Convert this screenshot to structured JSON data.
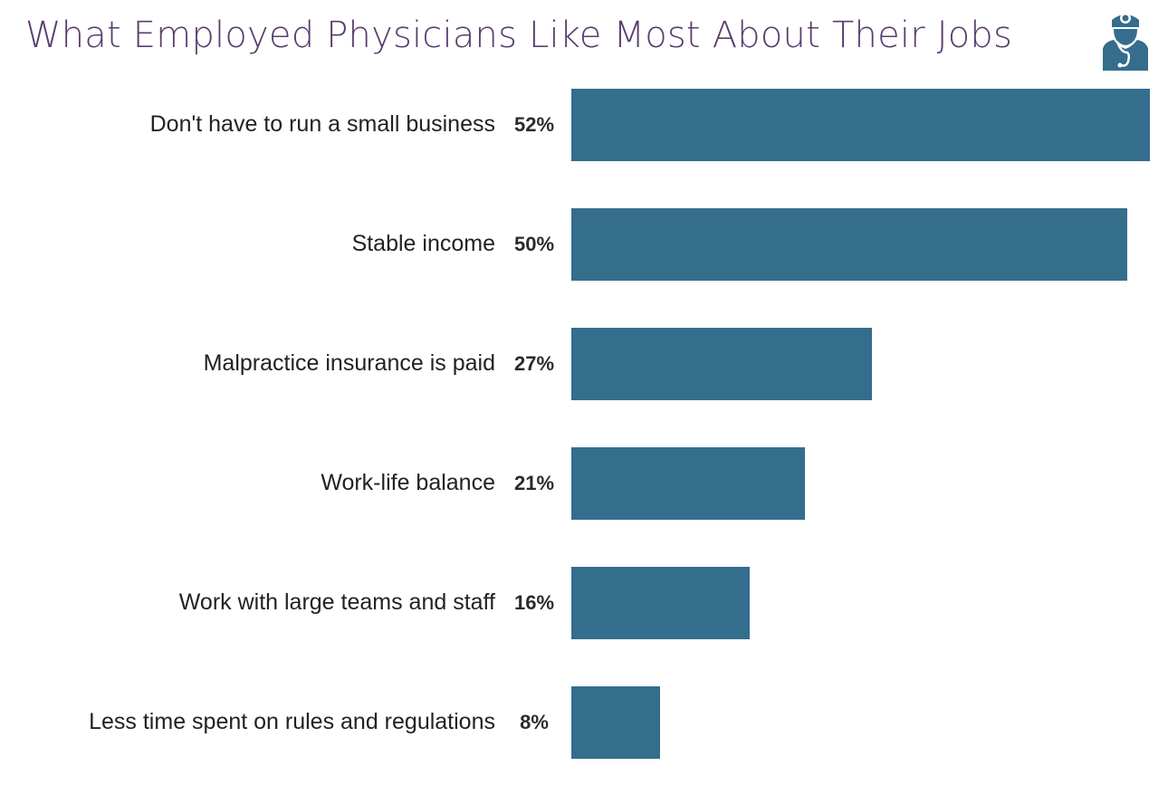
{
  "title": "What Employed Physicians Like Most About Their Jobs",
  "icon": "doctor-stethoscope-icon",
  "colors": {
    "bar": "#356d8c",
    "title": "#5a3d6e",
    "icon": "#356d8c"
  },
  "chart_data": {
    "type": "bar",
    "orientation": "horizontal",
    "title": "What Employed Physicians Like Most About Their Jobs",
    "categories": [
      "Don't have to run a small business",
      "Stable income",
      "Malpractice insurance is paid",
      "Work-life balance",
      "Work with large teams and staff",
      "Less time spent on rules and regulations"
    ],
    "values": [
      52,
      50,
      27,
      21,
      16,
      8
    ],
    "value_labels": [
      "52%",
      "50%",
      "27%",
      "21%",
      "16%",
      "8%"
    ],
    "xlabel": "",
    "ylabel": "",
    "xlim": [
      0,
      52
    ],
    "grid": false,
    "legend": null
  }
}
